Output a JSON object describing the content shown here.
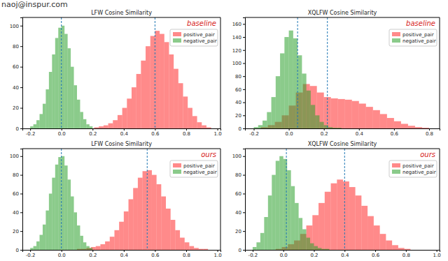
{
  "header": {
    "text": "naoj@inspur.com"
  },
  "chart_data": [
    {
      "type": "histogram",
      "title": "LFW Cosine Similarity",
      "annotation": "baseline",
      "xlim": [
        -0.25,
        1.02
      ],
      "xticks": [
        -0.2,
        {
          "value": 0,
          "label": "0.0"
        },
        0.2,
        0.4,
        0.6,
        0.8,
        {
          "value": 1,
          "label": "1.0"
        }
      ],
      "ylim": [
        0,
        108
      ],
      "yticks": [
        0,
        20,
        40,
        60,
        80,
        100
      ],
      "legend": "upper right",
      "reference_lines": [
        0,
        0.6
      ],
      "series": [
        {
          "name": "positive_pair",
          "color": "#ff2a2a",
          "bins": [
            0.21,
            0.24,
            0.27,
            0.3,
            0.33,
            0.36,
            0.39,
            0.42,
            0.45,
            0.48,
            0.51,
            0.54,
            0.57,
            0.6,
            0.63,
            0.66,
            0.69,
            0.72,
            0.75,
            0.78,
            0.81,
            0.84,
            0.87,
            0.9,
            0.93,
            0.96
          ],
          "values": [
            1,
            2,
            3,
            5,
            8,
            13,
            20,
            29,
            40,
            53,
            66,
            80,
            90,
            95,
            92,
            84,
            72,
            58,
            44,
            31,
            20,
            12,
            6,
            3,
            1
          ]
        },
        {
          "name": "negative_pair",
          "color": "#2ca02c",
          "bins": [
            -0.2,
            -0.18,
            -0.16,
            -0.14,
            -0.12,
            -0.1,
            -0.08,
            -0.06,
            -0.04,
            -0.02,
            0,
            0.02,
            0.04,
            0.06,
            0.08,
            0.1,
            0.12,
            0.14,
            0.16,
            0.18,
            0.2
          ],
          "values": [
            2,
            4,
            8,
            14,
            24,
            38,
            55,
            72,
            88,
            98,
            100,
            92,
            78,
            60,
            42,
            28,
            16,
            9,
            4,
            2
          ]
        }
      ]
    },
    {
      "type": "histogram",
      "title": "XQLFW Cosine Similarity",
      "annotation": "baseline",
      "xlim": [
        -0.25,
        0.86
      ],
      "xticks": [
        -0.2,
        {
          "value": 0,
          "label": "0.0"
        },
        0.2,
        0.4,
        0.6,
        0.8
      ],
      "ylim": [
        0,
        170
      ],
      "yticks": [
        0,
        20,
        40,
        60,
        80,
        100,
        120,
        140,
        160
      ],
      "legend": "upper right",
      "reference_lines": [
        0.05,
        0.22
      ],
      "series": [
        {
          "name": "positive_pair",
          "color": "#ff2a2a",
          "bins": [
            -0.16,
            -0.12,
            -0.08,
            -0.04,
            0,
            0.04,
            0.08,
            0.12,
            0.16,
            0.2,
            0.24,
            0.28,
            0.32,
            0.36,
            0.4,
            0.44,
            0.48,
            0.52,
            0.56,
            0.6,
            0.64,
            0.68,
            0.72,
            0.76,
            0.8
          ],
          "values": [
            2,
            5,
            10,
            20,
            35,
            55,
            68,
            65,
            55,
            48,
            46,
            45,
            44,
            42,
            38,
            33,
            28,
            22,
            16,
            11,
            7,
            4,
            2,
            1
          ]
        },
        {
          "name": "negative_pair",
          "color": "#2ca02c",
          "bins": [
            -0.2,
            -0.175,
            -0.15,
            -0.125,
            -0.1,
            -0.075,
            -0.05,
            -0.025,
            0,
            0.025,
            0.05,
            0.075,
            0.1,
            0.125,
            0.15,
            0.175,
            0.2,
            0.225,
            0.25,
            0.275,
            0.3
          ],
          "values": [
            2,
            5,
            12,
            25,
            48,
            80,
            115,
            140,
            150,
            138,
            112,
            84,
            58,
            36,
            20,
            10,
            5,
            2,
            1,
            1
          ]
        }
      ]
    },
    {
      "type": "histogram",
      "title": "LFW Cosine Similarity",
      "annotation": "ours",
      "xlim": [
        -0.25,
        1.02
      ],
      "xticks": [
        -0.2,
        {
          "value": 0,
          "label": "0.0"
        },
        0.2,
        0.4,
        0.6,
        0.8,
        {
          "value": 1,
          "label": "1.0"
        }
      ],
      "ylim": [
        0,
        108
      ],
      "yticks": [
        0,
        20,
        40,
        60,
        80,
        100
      ],
      "legend": "upper right",
      "reference_lines": [
        0,
        0.55
      ],
      "series": [
        {
          "name": "positive_pair",
          "color": "#ff2a2a",
          "bins": [
            0.1,
            0.13,
            0.16,
            0.19,
            0.22,
            0.25,
            0.28,
            0.31,
            0.34,
            0.37,
            0.4,
            0.43,
            0.46,
            0.49,
            0.52,
            0.55,
            0.58,
            0.61,
            0.64,
            0.67,
            0.7,
            0.73,
            0.76,
            0.79,
            0.82,
            0.85,
            0.88,
            0.91,
            0.94
          ],
          "values": [
            1,
            1,
            2,
            3,
            4,
            6,
            9,
            14,
            21,
            30,
            41,
            54,
            66,
            77,
            84,
            85,
            80,
            70,
            57,
            44,
            32,
            21,
            13,
            8,
            4,
            2,
            1,
            1
          ]
        },
        {
          "name": "negative_pair",
          "color": "#2ca02c",
          "bins": [
            -0.2,
            -0.18,
            -0.16,
            -0.14,
            -0.12,
            -0.1,
            -0.08,
            -0.06,
            -0.04,
            -0.02,
            0,
            0.02,
            0.04,
            0.06,
            0.08,
            0.1,
            0.12,
            0.14,
            0.16,
            0.18,
            0.2
          ],
          "values": [
            2,
            4,
            9,
            16,
            27,
            42,
            60,
            77,
            91,
            99,
            100,
            90,
            75,
            57,
            40,
            26,
            15,
            8,
            4,
            2
          ]
        }
      ]
    },
    {
      "type": "histogram",
      "title": "XQLFW Cosine Similarity",
      "annotation": "ours",
      "xlim": [
        -0.25,
        1.02
      ],
      "xticks": [
        -0.2,
        {
          "value": 0,
          "label": "0.0"
        },
        0.2,
        0.4,
        0.6,
        0.8,
        {
          "value": 1,
          "label": "1.0"
        }
      ],
      "ylim": [
        0,
        108
      ],
      "yticks": [
        0,
        20,
        40,
        60,
        80,
        100
      ],
      "legend": "upper right",
      "reference_lines": [
        0.02,
        0.4
      ],
      "series": [
        {
          "name": "positive_pair",
          "color": "#ff2a2a",
          "bins": [
            -0.05,
            -0.01,
            0.03,
            0.07,
            0.11,
            0.15,
            0.19,
            0.23,
            0.27,
            0.31,
            0.35,
            0.39,
            0.43,
            0.47,
            0.51,
            0.55,
            0.59,
            0.63,
            0.67,
            0.71,
            0.75,
            0.79,
            0.83
          ],
          "values": [
            1,
            3,
            6,
            10,
            17,
            26,
            37,
            50,
            62,
            71,
            75,
            73,
            67,
            58,
            47,
            36,
            26,
            17,
            10,
            5,
            2,
            1
          ]
        },
        {
          "name": "negative_pair",
          "color": "#2ca02c",
          "bins": [
            -0.2,
            -0.175,
            -0.15,
            -0.125,
            -0.1,
            -0.075,
            -0.05,
            -0.025,
            0,
            0.025,
            0.05,
            0.075,
            0.1,
            0.125,
            0.15,
            0.175,
            0.2,
            0.225,
            0.25,
            0.275,
            0.3
          ],
          "values": [
            3,
            8,
            18,
            35,
            58,
            80,
            95,
            100,
            97,
            85,
            68,
            50,
            34,
            22,
            13,
            7,
            4,
            2,
            1,
            1
          ]
        }
      ]
    }
  ]
}
